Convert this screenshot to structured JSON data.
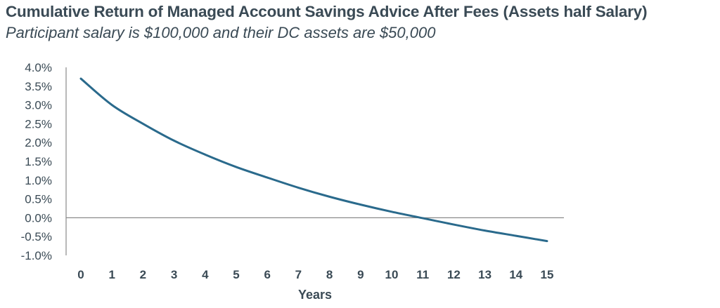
{
  "chart_data": {
    "type": "line",
    "title": "Cumulative Return of Managed Account Savings Advice After Fees (Assets half Salary)",
    "subtitle": "Participant salary is $100,000 and their DC assets are $50,000",
    "xlabel": "Years",
    "ylabel": "",
    "x": [
      0,
      1,
      2,
      3,
      4,
      5,
      6,
      7,
      8,
      9,
      10,
      11,
      12,
      13,
      14,
      15
    ],
    "x_tick_labels": [
      "0",
      "1",
      "2",
      "3",
      "4",
      "5",
      "6",
      "7",
      "8",
      "9",
      "10",
      "11",
      "12",
      "13",
      "14",
      "15"
    ],
    "series": [
      {
        "name": "",
        "color": "#2a6a8c",
        "values": [
          3.7,
          3.0,
          2.5,
          2.05,
          1.68,
          1.35,
          1.07,
          0.8,
          0.56,
          0.35,
          0.16,
          -0.01,
          -0.18,
          -0.34,
          -0.48,
          -0.62
        ]
      }
    ],
    "ylim": [
      -1.0,
      4.0
    ],
    "y_ticks": [
      4.0,
      3.5,
      3.0,
      2.5,
      2.0,
      1.5,
      1.0,
      0.5,
      0.0,
      -0.5,
      -1.0
    ],
    "y_tick_labels": [
      "4.0%",
      "3.5%",
      "3.0%",
      "2.5%",
      "2.0%",
      "1.5%",
      "1.0%",
      "0.5%",
      "0.0%",
      "-0.5%",
      "-1.0%"
    ],
    "grid": false,
    "zero_line": true,
    "legend": "none"
  }
}
